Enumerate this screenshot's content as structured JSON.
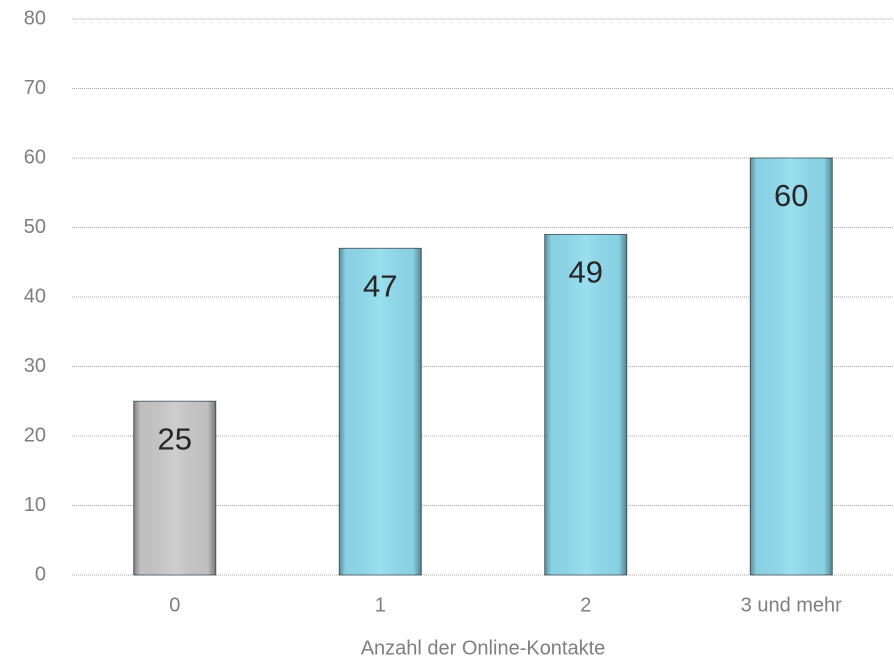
{
  "chart_data": {
    "type": "bar",
    "categories": [
      "0",
      "1",
      "2",
      "3 und mehr"
    ],
    "values": [
      25,
      47,
      49,
      60
    ],
    "colors": [
      "#c9c9c9",
      "#8fdcef",
      "#8fdcef",
      "#8fdcef"
    ],
    "xlabel": "Anzahl der Online-Kontakte",
    "ylim": [
      0,
      80
    ],
    "yticks": [
      0,
      10,
      20,
      30,
      40,
      50,
      60,
      70,
      80
    ],
    "grid": true
  }
}
